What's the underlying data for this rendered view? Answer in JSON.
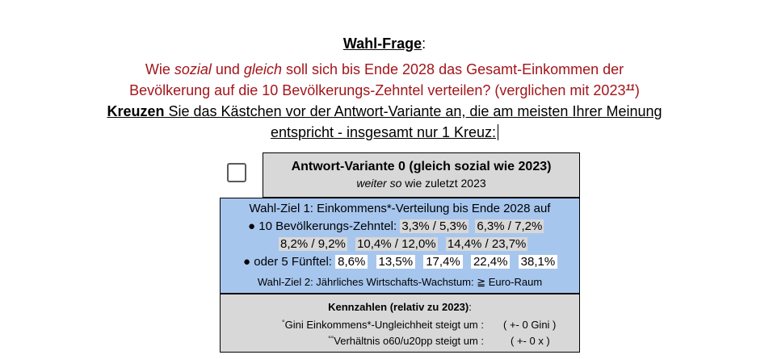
{
  "question": {
    "title": "Wahl-Frage",
    "title_suffix": ":",
    "line1_pre": "Wie ",
    "line1_em1": "sozial",
    "line1_mid": " und ",
    "line1_em2": "gleich",
    "line1_post": " soll sich bis Ende 2028 das Gesamt-Einkommen der",
    "line2": "Bevölkerung auf die 10 Bevölkerungs-Zehntel verteilen? (verglichen mit 2023",
    "line2_sup": "11",
    "line2_end": ")",
    "line3_bold": "Kreuzen",
    "line3_rest": " Sie das Kästchen vor der Antwort-Variante an, die am meisten Ihrer Meinung",
    "line4": "entspricht - insgesamt nur 1 Kreuz:"
  },
  "variant": {
    "title": "Antwort-Variante 0  (gleich sozial wie 2023)",
    "sub_em": "weiter so",
    "sub_rest": " wie zuletzt 2023"
  },
  "goal": {
    "line1": "Wahl-Ziel 1: Einkommens*-Verteilung bis Ende 2028 auf",
    "deciles_label": "● 10 Bevölkerungs-Zehntel:",
    "deciles": [
      "3,3% / 5,3%",
      "6,3% / 7,2%",
      "8,2% / 9,2%",
      "10,4% / 12,0%",
      "14,4% / 23,7%"
    ],
    "quintiles_label": "● oder 5 Fünftel:",
    "quintiles": [
      "8,6%",
      "13,5%",
      "17,4%",
      "22,4%",
      "38,1%"
    ],
    "line5": "Wahl-Ziel 2: Jährliches Wirtschafts-Wachstum: ≧ Euro-Raum"
  },
  "kennzahlen": {
    "title": "Kennzahlen (relativ zu 2023)",
    "title_suffix": ":",
    "row1_mark": "°",
    "row1_label": "Gini Einkommens*-Ungleichheit steigt um :",
    "row1_value": "( +- 0 Gini )",
    "row2_mark": "°°",
    "row2_label": "Verhältnis o60/u20pp steigt um :",
    "row2_value": "( +- 0 x )"
  }
}
